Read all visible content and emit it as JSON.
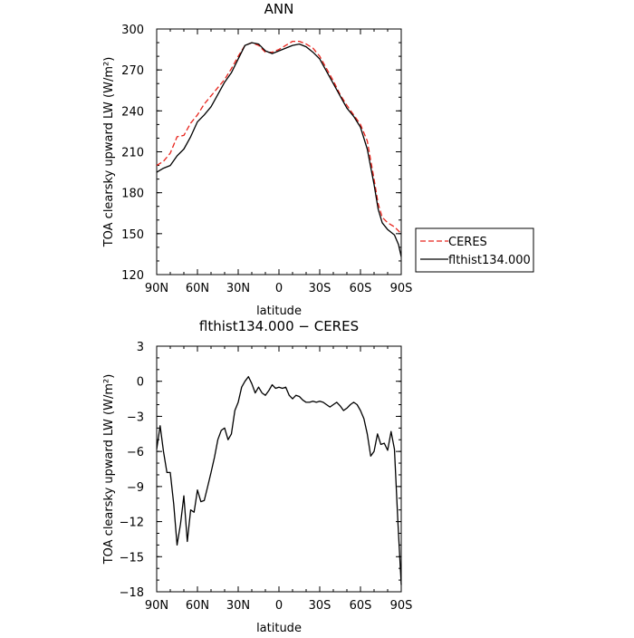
{
  "chart_data": [
    {
      "type": "line",
      "title": "ANN",
      "xlabel": "latitude",
      "ylabel": "TOA clearsky upward LW (W/m²)",
      "xlim": [
        90,
        -90
      ],
      "ylim": [
        120,
        300
      ],
      "xticks": [
        90,
        60,
        30,
        0,
        -30,
        -60,
        -90
      ],
      "xtick_labels": [
        "90N",
        "60N",
        "30N",
        "0",
        "30S",
        "60S",
        "90S"
      ],
      "yticks": [
        120,
        150,
        180,
        210,
        240,
        270,
        300
      ],
      "legend_position": "outside-right",
      "series": [
        {
          "name": "CERES",
          "color": "#e8231b",
          "dash": "dashed",
          "x": [
            90,
            85,
            80,
            75,
            70,
            65,
            60,
            55,
            50,
            45,
            40,
            35,
            30,
            25,
            20,
            15,
            10,
            5,
            0,
            -5,
            -10,
            -15,
            -20,
            -25,
            -30,
            -35,
            -40,
            -45,
            -50,
            -55,
            -60,
            -65,
            -70,
            -73,
            -76,
            -80,
            -85,
            -88,
            -90
          ],
          "y": [
            200,
            203,
            209,
            221,
            222,
            231,
            237,
            245,
            251,
            257,
            263,
            271,
            280,
            288,
            290,
            288,
            283,
            283,
            285,
            288,
            291,
            291,
            289,
            286,
            280,
            271,
            262,
            252,
            244,
            237,
            230,
            218,
            190,
            172,
            162,
            158,
            155,
            152,
            150
          ]
        },
        {
          "name": "flthist134.000",
          "color": "#000000",
          "dash": "solid",
          "x": [
            90,
            85,
            80,
            75,
            70,
            65,
            60,
            55,
            50,
            45,
            40,
            35,
            30,
            25,
            20,
            15,
            10,
            5,
            0,
            -5,
            -10,
            -15,
            -20,
            -25,
            -30,
            -35,
            -40,
            -45,
            -50,
            -55,
            -60,
            -65,
            -70,
            -73,
            -76,
            -80,
            -85,
            -88,
            -90
          ],
          "y": [
            195,
            198,
            200,
            207,
            212,
            221,
            232,
            237,
            243,
            252,
            261,
            268,
            278,
            288,
            290,
            289,
            284,
            282,
            284,
            286,
            288,
            289,
            287,
            283,
            278,
            269,
            260,
            251,
            242,
            236,
            228,
            212,
            186,
            168,
            158,
            153,
            149,
            142,
            133
          ]
        }
      ]
    },
    {
      "type": "line",
      "title": "flthist134.000 − CERES",
      "xlabel": "latitude",
      "ylabel": "TOA clearsky upward LW (W/m²)",
      "xlim": [
        90,
        -90
      ],
      "ylim": [
        -18,
        3
      ],
      "xticks": [
        90,
        60,
        30,
        0,
        -30,
        -60,
        -90
      ],
      "xtick_labels": [
        "90N",
        "60N",
        "30N",
        "0",
        "30S",
        "60S",
        "90S"
      ],
      "yticks": [
        -18,
        -15,
        -12,
        -9,
        -6,
        -3,
        0,
        3
      ],
      "series": [
        {
          "color": "#000000",
          "x": [
            90,
            87.5,
            85,
            82.5,
            80,
            77.5,
            75,
            72.5,
            70,
            67.5,
            65,
            62.5,
            60,
            57.5,
            55,
            52.5,
            50,
            47.5,
            45,
            42.5,
            40,
            37.5,
            35,
            32.5,
            30,
            27.5,
            25,
            22.5,
            20,
            17.5,
            15,
            12.5,
            10,
            7.5,
            5,
            2.5,
            0,
            -2.5,
            -5,
            -7.5,
            -10,
            -12.5,
            -15,
            -17.5,
            -20,
            -22.5,
            -25,
            -27.5,
            -30,
            -32.5,
            -35,
            -37.5,
            -40,
            -42.5,
            -45,
            -47.5,
            -50,
            -52.5,
            -55,
            -57.5,
            -60,
            -62.5,
            -65,
            -67.5,
            -70,
            -72.5,
            -75,
            -77.5,
            -80,
            -82.5,
            -85,
            -87.5,
            -90
          ],
          "y": [
            -5.8,
            -3.8,
            -6.0,
            -7.8,
            -7.8,
            -10.5,
            -14.0,
            -12.2,
            -9.8,
            -13.7,
            -11.0,
            -11.2,
            -9.3,
            -10.3,
            -10.2,
            -9.0,
            -7.8,
            -6.5,
            -5.0,
            -4.2,
            -4.0,
            -5.0,
            -4.5,
            -2.5,
            -1.8,
            -0.5,
            0.0,
            0.4,
            -0.2,
            -1.0,
            -0.5,
            -1.0,
            -1.2,
            -0.8,
            -0.3,
            -0.6,
            -0.5,
            -0.6,
            -0.5,
            -1.2,
            -1.5,
            -1.2,
            -1.3,
            -1.6,
            -1.8,
            -1.8,
            -1.7,
            -1.8,
            -1.7,
            -1.8,
            -2.0,
            -2.2,
            -2.0,
            -1.8,
            -2.1,
            -2.5,
            -2.3,
            -2.0,
            -1.8,
            -2.0,
            -2.5,
            -3.2,
            -4.5,
            -6.4,
            -6.0,
            -4.5,
            -5.4,
            -5.3,
            -5.9,
            -4.3,
            -5.8,
            -12.0,
            -17.4
          ]
        }
      ]
    }
  ]
}
